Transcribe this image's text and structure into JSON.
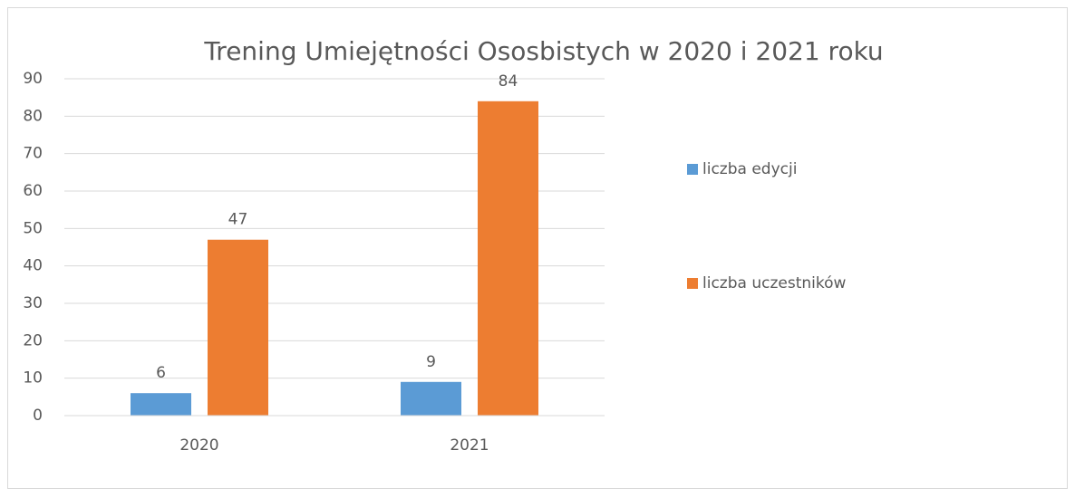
{
  "chart_data": {
    "type": "bar",
    "title": "Trening Umiejętności Ososbistych w 2020 i 2021 roku",
    "categories": [
      "2020",
      "2021"
    ],
    "series": [
      {
        "name": "liczba edycji",
        "color": "#5b9bd5",
        "values": [
          6,
          9
        ]
      },
      {
        "name": "liczba uczestników",
        "color": "#ed7d31",
        "values": [
          47,
          84
        ]
      }
    ],
    "ylim": [
      0,
      90
    ],
    "yticks": [
      0,
      10,
      20,
      30,
      40,
      50,
      60,
      70,
      80,
      90
    ],
    "grid": true,
    "legend": "right",
    "data_labels": true
  }
}
